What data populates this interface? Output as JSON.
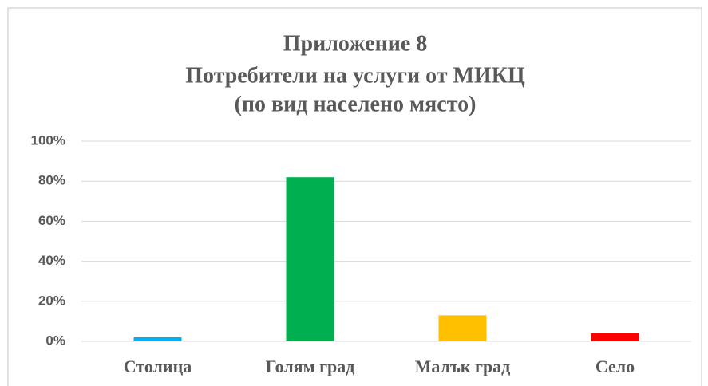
{
  "chart_data": {
    "type": "bar",
    "title": [
      "Приложение 8",
      "Потребители на услуги от МИКЦ",
      "(по вид населено място)"
    ],
    "categories": [
      "Столица",
      "Голям град",
      "Малък град",
      "Село"
    ],
    "values": [
      2,
      82,
      13,
      4
    ],
    "colors": [
      "#00b0f0",
      "#00b050",
      "#ffc000",
      "#ff0000"
    ],
    "ylim": [
      0,
      100
    ],
    "yticks": [
      {
        "value": 0,
        "label": "0%"
      },
      {
        "value": 20,
        "label": "20%"
      },
      {
        "value": 40,
        "label": "40%"
      },
      {
        "value": 60,
        "label": "60%"
      },
      {
        "value": 80,
        "label": "80%"
      },
      {
        "value": 100,
        "label": "100%"
      }
    ],
    "grid": true
  }
}
